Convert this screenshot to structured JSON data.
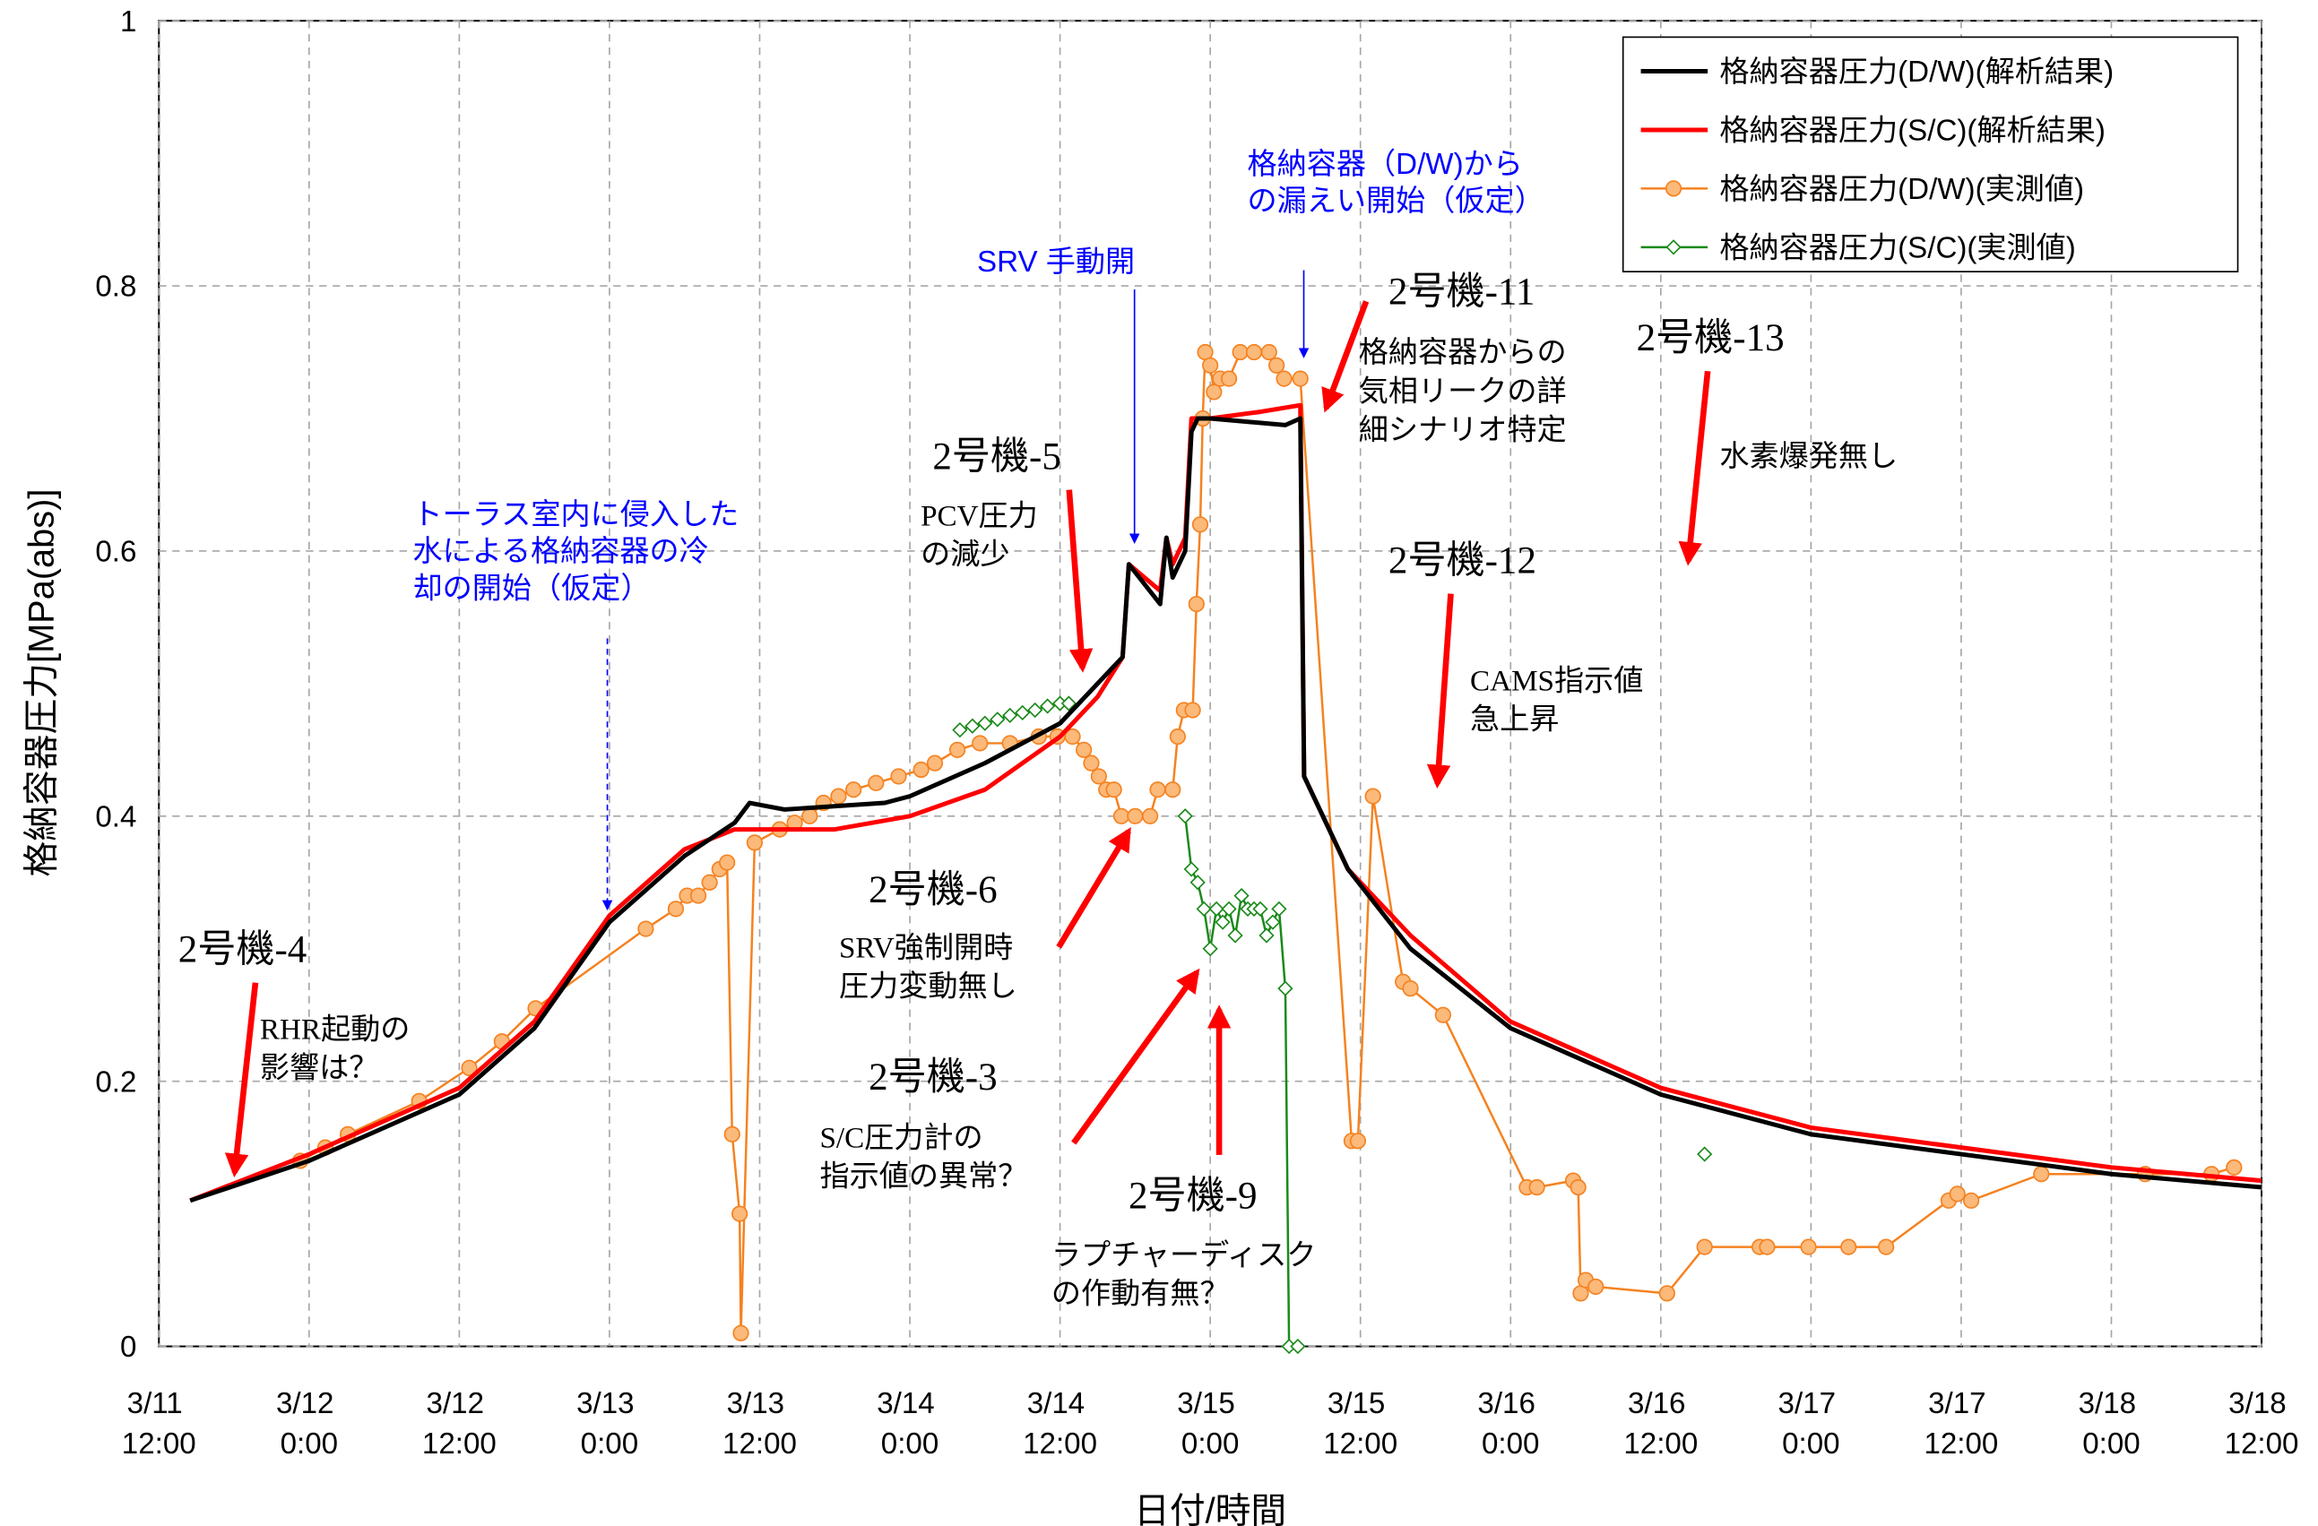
{
  "chart_data": {
    "type": "line",
    "xlabel": "日付/時間",
    "ylabel": "格納容器圧力[MPa(abs)]",
    "xlim": [
      0,
      168
    ],
    "xticks": [
      {
        "value": 0,
        "label": "3/11 12:00"
      },
      {
        "value": 12,
        "label": "3/12 0:00"
      },
      {
        "value": 24,
        "label": "3/12 12:00"
      },
      {
        "value": 36,
        "label": "3/13 0:00"
      },
      {
        "value": 48,
        "label": "3/13 12:00"
      },
      {
        "value": 60,
        "label": "3/14 0:00"
      },
      {
        "value": 72,
        "label": "3/14 12:00"
      },
      {
        "value": 84,
        "label": "3/15 0:00"
      },
      {
        "value": 96,
        "label": "3/15 12:00"
      },
      {
        "value": 108,
        "label": "3/16 0:00"
      },
      {
        "value": 120,
        "label": "3/16 12:00"
      },
      {
        "value": 132,
        "label": "3/17 0:00"
      },
      {
        "value": 144,
        "label": "3/17 12:00"
      },
      {
        "value": 156,
        "label": "3/18 0:00"
      },
      {
        "value": 168,
        "label": "3/18 12:00"
      }
    ],
    "ylim": [
      0,
      1
    ],
    "yticks": [
      0,
      0.2,
      0.4,
      0.6,
      0.8,
      1
    ],
    "grid": true,
    "legend": "upper right",
    "series": [
      {
        "name": "格納容器圧力(D/W)(解析結果)",
        "color": "#000000",
        "marker": "none",
        "x": [
          2.5,
          12,
          24,
          30,
          36,
          42,
          46,
          47.2,
          50,
          58,
          60,
          66,
          72,
          75,
          77,
          77.5,
          80,
          80.5,
          81,
          82,
          82.5,
          83,
          84,
          90,
          91.2,
          91.5,
          95,
          100,
          108,
          120,
          132,
          144,
          156,
          168
        ],
        "values": [
          0.11,
          0.14,
          0.19,
          0.24,
          0.32,
          0.37,
          0.395,
          0.41,
          0.405,
          0.41,
          0.415,
          0.44,
          0.47,
          0.5,
          0.52,
          0.59,
          0.56,
          0.61,
          0.58,
          0.6,
          0.69,
          0.7,
          0.7,
          0.695,
          0.7,
          0.43,
          0.36,
          0.3,
          0.24,
          0.19,
          0.16,
          0.145,
          0.13,
          0.12
        ]
      },
      {
        "name": "格納容器圧力(S/C)(解析結果)",
        "color": "#ff0000",
        "marker": "none",
        "x": [
          2.5,
          12,
          24,
          30,
          36,
          42,
          46,
          48,
          54,
          60,
          66,
          72,
          75,
          77,
          77.5,
          80,
          80.5,
          81,
          82,
          82.5,
          84,
          88,
          91.2,
          91.5,
          95,
          100,
          108,
          120,
          132,
          144,
          156,
          168
        ],
        "values": [
          0.11,
          0.145,
          0.195,
          0.245,
          0.325,
          0.375,
          0.39,
          0.39,
          0.39,
          0.4,
          0.42,
          0.46,
          0.49,
          0.52,
          0.59,
          0.57,
          0.61,
          0.59,
          0.61,
          0.7,
          0.7,
          0.705,
          0.71,
          0.43,
          0.36,
          0.31,
          0.245,
          0.195,
          0.165,
          0.15,
          0.135,
          0.125
        ]
      },
      {
        "name": "格納容器圧力(D/W)(実測値)",
        "color": "#f58220",
        "marker": "circle",
        "x": [
          11.3,
          13.3,
          15.1,
          20.8,
          24.8,
          27.4,
          30.1,
          38.9,
          41.3,
          42.2,
          43.1,
          44,
          44.8,
          45.4,
          45.8,
          46.4,
          46.5,
          47.6,
          49.6,
          50.8,
          52,
          53.1,
          54.3,
          55.5,
          57.3,
          59.1,
          60.9,
          62,
          63.8,
          65.6,
          68,
          70.3,
          71.8,
          73,
          73.9,
          74.5,
          75.1,
          75.7,
          76.3,
          76.9,
          78,
          79.2,
          79.8,
          81,
          81.4,
          81.9,
          82.6,
          82.9,
          83.2,
          83.4,
          83.6,
          84,
          84.3,
          84.8,
          85.5,
          86.4,
          87.5,
          88.7,
          89.3,
          89.9,
          91.2,
          95.3,
          95.8,
          97,
          99.4,
          100,
          102.6,
          109.3,
          110.1,
          113,
          113.4,
          113.6,
          114,
          114.8,
          120.5,
          123.5,
          127.9,
          128.5,
          131.8,
          135,
          138,
          143,
          143.7,
          144.8,
          150.4,
          158.7,
          164,
          165.8
        ],
        "values": [
          0.14,
          0.15,
          0.16,
          0.185,
          0.21,
          0.23,
          0.255,
          0.315,
          0.33,
          0.34,
          0.34,
          0.35,
          0.36,
          0.365,
          0.16,
          0.1,
          0.01,
          0.38,
          0.39,
          0.395,
          0.4,
          0.41,
          0.415,
          0.42,
          0.425,
          0.43,
          0.435,
          0.44,
          0.45,
          0.455,
          0.455,
          0.46,
          0.46,
          0.46,
          0.45,
          0.44,
          0.43,
          0.42,
          0.42,
          0.4,
          0.4,
          0.4,
          0.42,
          0.42,
          0.46,
          0.48,
          0.48,
          0.56,
          0.62,
          0.7,
          0.75,
          0.74,
          0.72,
          0.73,
          0.73,
          0.75,
          0.75,
          0.75,
          0.74,
          0.73,
          0.73,
          0.155,
          0.155,
          0.415,
          0.275,
          0.27,
          0.25,
          0.12,
          0.12,
          0.125,
          0.12,
          0.04,
          0.05,
          0.045,
          0.04,
          0.075,
          0.075,
          0.075,
          0.075,
          0.075,
          0.075,
          0.11,
          0.115,
          0.11,
          0.13,
          0.13,
          0.13,
          0.135
        ]
      },
      {
        "name": "格納容器圧力(S/C)(実測値)",
        "color": "#1a8a1a",
        "marker": "diamond",
        "x": [
          64,
          65,
          66,
          67,
          68,
          69,
          70,
          71,
          72,
          72.7,
          null,
          82,
          82.5,
          83,
          83.5,
          84,
          84.5,
          85,
          85.5,
          86,
          86.5,
          87,
          87.5,
          88,
          88.5,
          89,
          89.5,
          90,
          90.3,
          91,
          null,
          123.5
        ],
        "values": [
          0.465,
          0.468,
          0.47,
          0.473,
          0.476,
          0.478,
          0.48,
          0.483,
          0.485,
          0.485,
          null,
          0.4,
          0.36,
          0.35,
          0.33,
          0.3,
          0.33,
          0.32,
          0.33,
          0.31,
          0.34,
          0.33,
          0.33,
          0.33,
          0.31,
          0.32,
          0.33,
          0.27,
          0,
          0,
          null,
          0.145
        ]
      }
    ],
    "assumptions": [
      {
        "lines": [
          "トーラス室内に侵入した",
          "水による格納容器の冷",
          "却の開始（仮定）"
        ]
      },
      {
        "lines": [
          "SRV 手動開"
        ]
      },
      {
        "lines": [
          "格納容器（D/W)から",
          "の漏えい開始（仮定）"
        ]
      }
    ],
    "annotations": [
      {
        "label": "2号機-4",
        "lines": [
          "RHR起動の",
          "影響は？"
        ]
      },
      {
        "label": "2号機-5",
        "lines": [
          "PCV圧力",
          "の減少"
        ]
      },
      {
        "label": "2号機-6",
        "lines": [
          "SRV強制開時",
          "圧力変動無し"
        ]
      },
      {
        "label": "2号機-3",
        "lines": [
          "S/C圧力計の",
          "指示値の異常？"
        ]
      },
      {
        "label": "2号機-9",
        "lines": [
          "ラプチャーディスク",
          "の作動有無？"
        ]
      },
      {
        "label": "2号機-11",
        "lines": [
          "格納容器からの",
          "気相リークの詳",
          "細シナリオ特定"
        ]
      },
      {
        "label": "2号機-12",
        "lines": [
          "CAMS指示値",
          "急上昇"
        ]
      },
      {
        "label": "2号機-13",
        "lines": [
          "水素爆発無し"
        ]
      }
    ]
  }
}
